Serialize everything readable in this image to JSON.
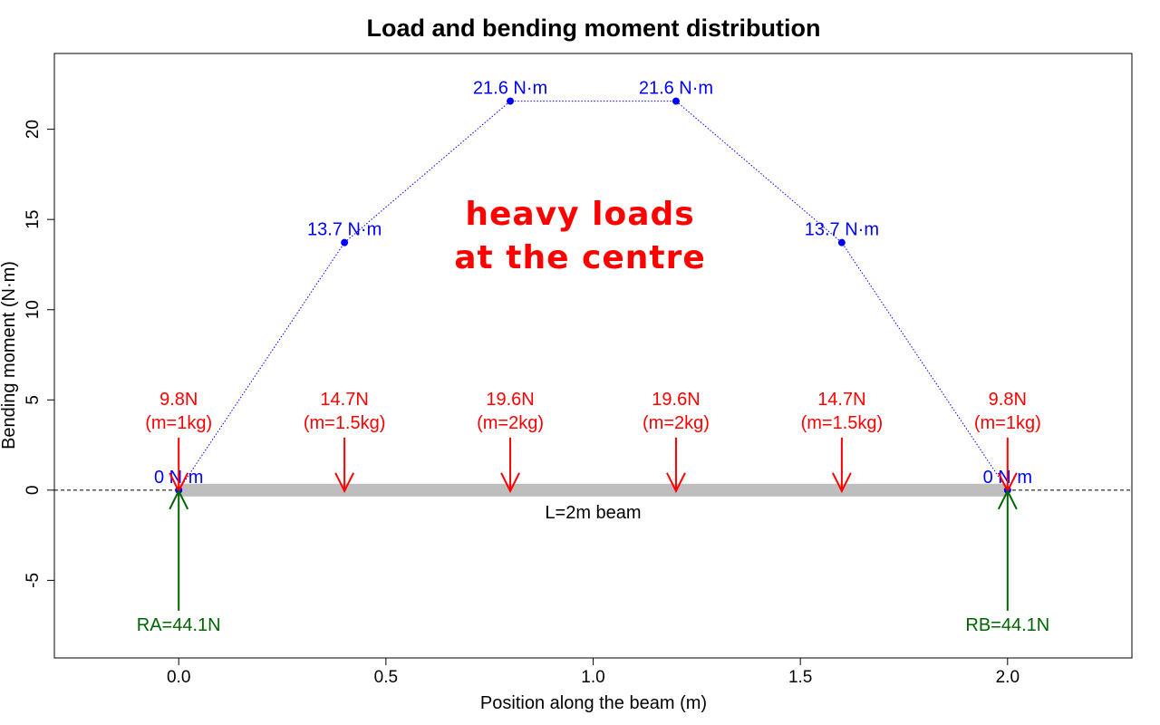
{
  "colors": {
    "moment": "#0000ff",
    "load": "#ff0000",
    "reaction": "#006400",
    "beam": "#bebebe",
    "axis": "#000000"
  },
  "chart_data": {
    "type": "line",
    "title": "Load and bending moment distribution",
    "xlabel": "Position along the beam (m)",
    "ylabel": "Bending moment (N·m)",
    "xlim": [
      -0.3,
      2.3
    ],
    "ylim": [
      -9.3,
      24.2
    ],
    "x_ticks": [
      "0.0",
      "0.5",
      "1.0",
      "1.5",
      "2.0"
    ],
    "y_ticks": [
      "-5",
      "0",
      "5",
      "10",
      "15",
      "20"
    ],
    "grid": false,
    "series": [
      {
        "x": [
          0.0,
          0.4,
          0.8,
          1.2,
          1.6,
          2.0
        ],
        "y": [
          0,
          13.72,
          21.56,
          21.56,
          13.72,
          0
        ],
        "labels": [
          "0 N·m",
          "13.7 N·m",
          "21.6 N·m",
          "21.6 N·m",
          "13.7 N·m",
          "0 N·m"
        ]
      }
    ],
    "loads": [
      {
        "x": 0.0,
        "force": "9.8N",
        "mass": "(m=1kg)"
      },
      {
        "x": 0.4,
        "force": "14.7N",
        "mass": "(m=1.5kg)"
      },
      {
        "x": 0.8,
        "force": "19.6N",
        "mass": "(m=2kg)"
      },
      {
        "x": 1.2,
        "force": "19.6N",
        "mass": "(m=2kg)"
      },
      {
        "x": 1.6,
        "force": "14.7N",
        "mass": "(m=1.5kg)"
      },
      {
        "x": 2.0,
        "force": "9.8N",
        "mass": "(m=1kg)"
      }
    ],
    "reactions": [
      {
        "x": 0.0,
        "label": "RA=44.1N"
      },
      {
        "x": 2.0,
        "label": "RB=44.1N"
      }
    ],
    "beam": {
      "x_start": 0.0,
      "x_end": 2.0,
      "label": "L=2m beam"
    },
    "annotation": {
      "lines": [
        "heavy loads",
        "at the centre"
      ]
    }
  }
}
